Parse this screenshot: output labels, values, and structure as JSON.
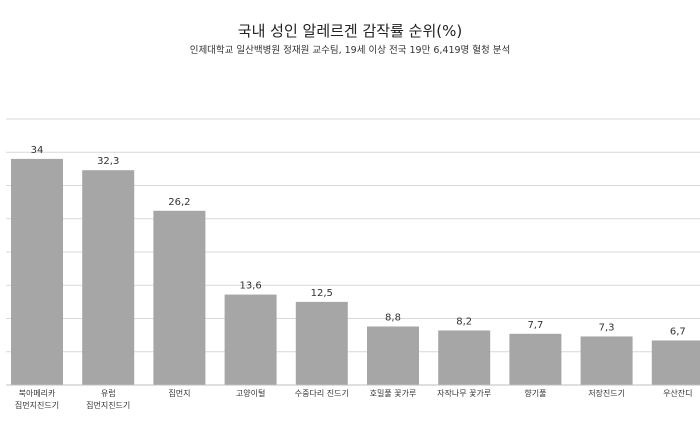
{
  "chart_data": {
    "type": "bar",
    "title": "국내 성인 알레르겐 감작률 순위(%)",
    "subtitle": "인제대학교 일산백병원 정재원 교수팀, 19세 이상 전국 19만 6,419명 혈청 분석",
    "categories": [
      [
        "북아메리카",
        "집먼지진드기"
      ],
      [
        "유럽",
        "집먼지진드기"
      ],
      [
        "집먼지"
      ],
      [
        "고양이털"
      ],
      [
        "수중다리 진드기"
      ],
      [
        "호밀풀 꽃가루"
      ],
      [
        "자작나무 꽃가루"
      ],
      [
        "향기풀"
      ],
      [
        "저장진드기"
      ],
      [
        "우산잔디"
      ]
    ],
    "values": [
      34,
      32.3,
      26.2,
      13.6,
      12.5,
      8.8,
      8.2,
      7.7,
      7.3,
      6.7
    ],
    "value_labels": [
      "34",
      "32,3",
      "26,2",
      "13,6",
      "12,5",
      "8,8",
      "8,2",
      "7,7",
      "7,3",
      "6,7"
    ],
    "ylim": [
      0,
      40
    ],
    "grid": true,
    "legend": "none",
    "bar_color": "#a6a6a6",
    "grid_color": "#d9d9d9"
  }
}
